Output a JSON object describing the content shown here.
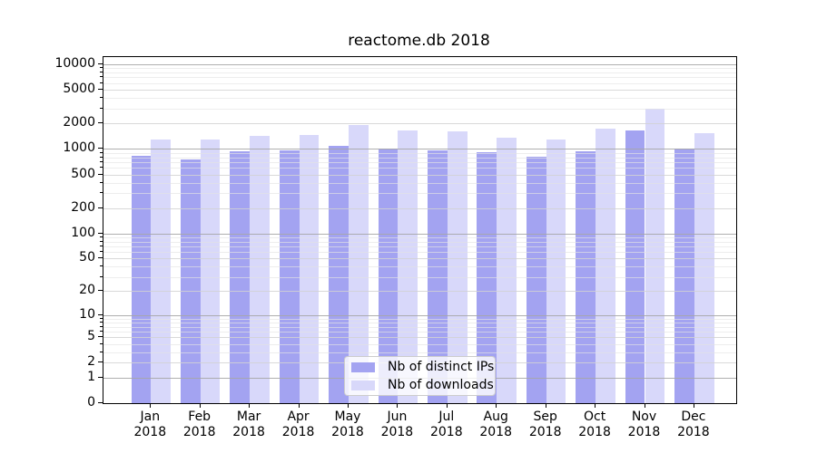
{
  "title": "reactome.db 2018",
  "colors": {
    "ips_bar": "#a3a3f1",
    "downloads_bar": "#d8d8fa",
    "axis": "#000000",
    "grid_major": "#aaaaaa",
    "grid_minor": "#e7e7e7",
    "legend_border": "#cccccc"
  },
  "legend": {
    "items": [
      {
        "label": "Nb of distinct IPs",
        "color": "#a3a3f1"
      },
      {
        "label": "Nb of downloads",
        "color": "#d8d8fa"
      }
    ]
  },
  "chart_data": {
    "type": "bar",
    "title": "reactome.db 2018",
    "xlabel": "",
    "ylabel": "",
    "yscale": "log1p",
    "grid": true,
    "legend_position": "lower center",
    "ylim": [
      0,
      12000
    ],
    "yticks": [
      0,
      1,
      2,
      5,
      10,
      20,
      50,
      100,
      200,
      500,
      1000,
      2000,
      5000,
      10000
    ],
    "minor_yticks": [
      3,
      4,
      6,
      7,
      8,
      9,
      30,
      40,
      60,
      70,
      80,
      90,
      300,
      400,
      600,
      700,
      800,
      900,
      3000,
      4000,
      6000,
      7000,
      8000,
      9000
    ],
    "categories": [
      {
        "month": "Jan",
        "year": "2018"
      },
      {
        "month": "Feb",
        "year": "2018"
      },
      {
        "month": "Mar",
        "year": "2018"
      },
      {
        "month": "Apr",
        "year": "2018"
      },
      {
        "month": "May",
        "year": "2018"
      },
      {
        "month": "Jun",
        "year": "2018"
      },
      {
        "month": "Jul",
        "year": "2018"
      },
      {
        "month": "Aug",
        "year": "2018"
      },
      {
        "month": "Sep",
        "year": "2018"
      },
      {
        "month": "Oct",
        "year": "2018"
      },
      {
        "month": "Nov",
        "year": "2018"
      },
      {
        "month": "Dec",
        "year": "2018"
      }
    ],
    "series": [
      {
        "name": "Nb of distinct IPs",
        "color": "#a3a3f1",
        "values": [
          830,
          760,
          950,
          955,
          1090,
          1000,
          965,
          910,
          820,
          940,
          1670,
          1020
        ]
      },
      {
        "name": "Nb of downloads",
        "color": "#d8d8fa",
        "values": [
          1310,
          1290,
          1420,
          1465,
          1935,
          1670,
          1630,
          1360,
          1305,
          1740,
          2970,
          1550
        ]
      }
    ]
  }
}
